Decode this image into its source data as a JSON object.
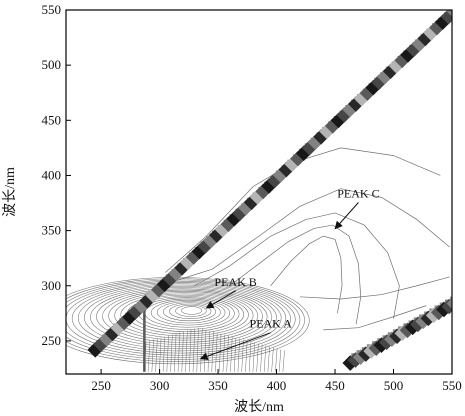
{
  "chart_data": {
    "type": "heatmap",
    "subtype": "excitation-emission contour plot",
    "title": "",
    "xlabel": "波长/nm",
    "ylabel": "波长/nm",
    "xlim": [
      220,
      550
    ],
    "ylim": [
      220,
      550
    ],
    "xticks": [
      250,
      300,
      350,
      400,
      450,
      500,
      550
    ],
    "yticks": [
      250,
      300,
      350,
      400,
      450,
      500,
      550
    ],
    "grid": false,
    "legend": "none",
    "colors": {
      "contour": "#6e6e6e",
      "scatter_band": "#1a1a1a",
      "arrow": "#111111"
    },
    "peaks": [
      {
        "label": "PEAK C",
        "x": 445,
        "y": 350,
        "label_x": 470,
        "label_y": 380
      },
      {
        "label": "PEAK B",
        "x": 335,
        "y": 278,
        "label_x": 365,
        "label_y": 300
      },
      {
        "label": "PEAK A",
        "x": 330,
        "y": 232,
        "label_x": 395,
        "label_y": 262
      }
    ],
    "scatter_bands": [
      {
        "name": "",
        "x_start": 245,
        "y_start": 240,
        "x_end": 552,
        "y_end": 547
      },
      {
        "name": "",
        "x_start": 463,
        "y_start": 228,
        "x_end": 552,
        "y_end": 282
      }
    ]
  }
}
